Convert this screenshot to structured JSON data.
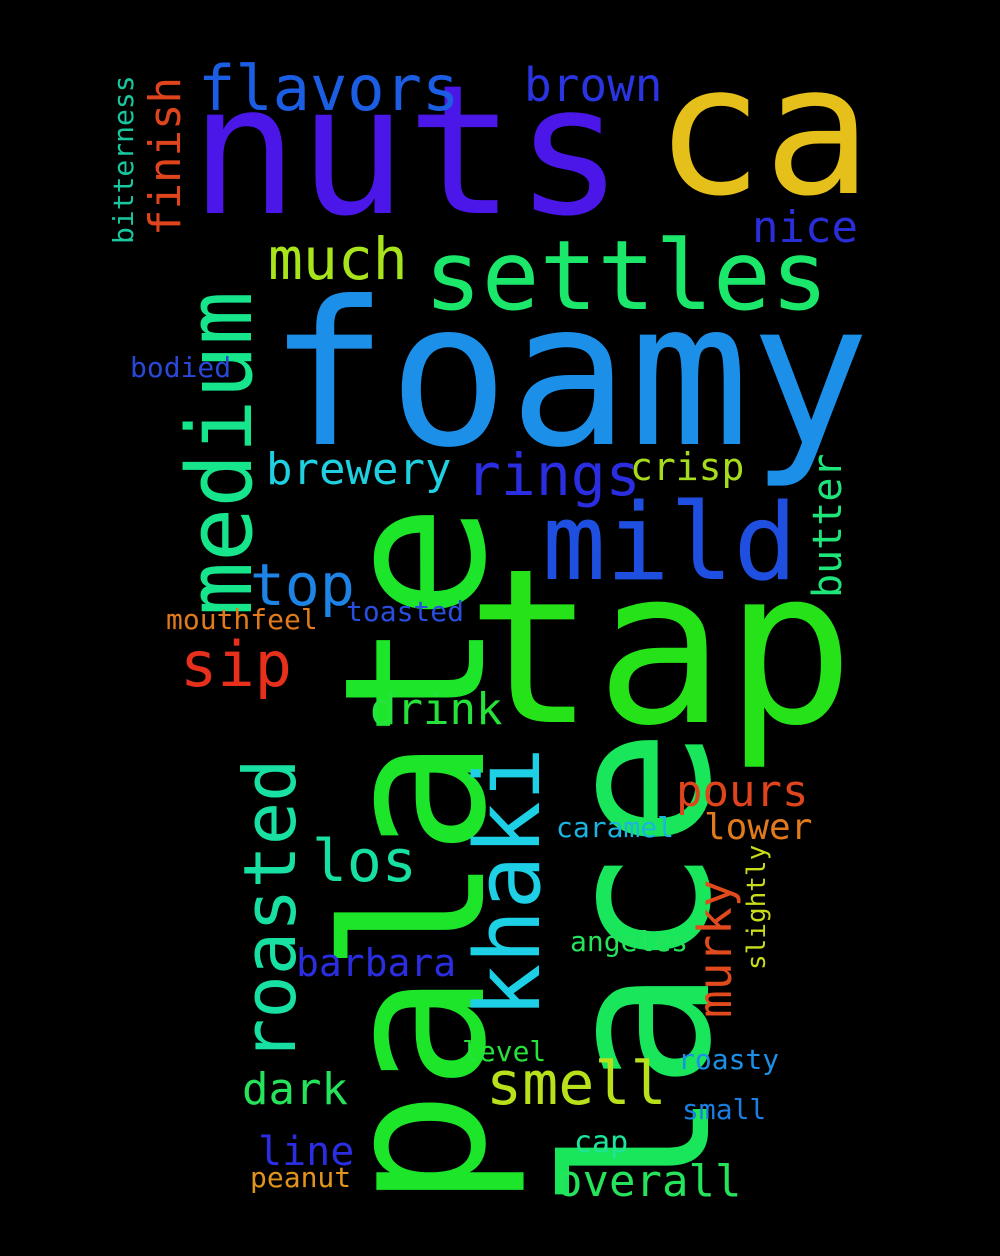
{
  "background": "#000000",
  "words": [
    {
      "text": "nuts",
      "color": "#4a17e8"
    },
    {
      "text": "ca",
      "color": "#e6c01a"
    },
    {
      "text": "foamy",
      "color": "#1c8fe8"
    },
    {
      "text": "tap",
      "color": "#25e318"
    },
    {
      "text": "palate",
      "color": "#1de62a"
    },
    {
      "text": "lace",
      "color": "#19e65a"
    },
    {
      "text": "settles",
      "color": "#1be86a"
    },
    {
      "text": "mild",
      "color": "#1e4fe0"
    },
    {
      "text": "medium",
      "color": "#17e58c"
    },
    {
      "text": "flavors",
      "color": "#1c5ee3"
    },
    {
      "text": "brown",
      "color": "#2a34e0"
    },
    {
      "text": "much",
      "color": "#a8e41b"
    },
    {
      "text": "nice",
      "color": "#2a2ed8"
    },
    {
      "text": "finish",
      "color": "#e0441c"
    },
    {
      "text": "bitterness",
      "color": "#18c79f"
    },
    {
      "text": "bodied",
      "color": "#2a48d8"
    },
    {
      "text": "brewery",
      "color": "#1fd1e0"
    },
    {
      "text": "rings",
      "color": "#2a2ee0"
    },
    {
      "text": "crisp",
      "color": "#a6dc1d"
    },
    {
      "text": "butter",
      "color": "#1ee47a"
    },
    {
      "text": "top",
      "color": "#1d84e6"
    },
    {
      "text": "mouthfeel",
      "color": "#e07a1d"
    },
    {
      "text": "toasted",
      "color": "#2a4fe0"
    },
    {
      "text": "sip",
      "color": "#e6301c"
    },
    {
      "text": "drink",
      "color": "#25e33a"
    },
    {
      "text": "roasted",
      "color": "#18e0a3"
    },
    {
      "text": "khaki",
      "color": "#1ed0e6"
    },
    {
      "text": "pours",
      "color": "#e0441c"
    },
    {
      "text": "lower",
      "color": "#e07a1d"
    },
    {
      "text": "murky",
      "color": "#e04a1c"
    },
    {
      "text": "caramel",
      "color": "#1cb4e0"
    },
    {
      "text": "los",
      "color": "#18e0a3"
    },
    {
      "text": "slightly",
      "color": "#c8dc1b"
    },
    {
      "text": "barbara",
      "color": "#2a2ee0"
    },
    {
      "text": "angeles",
      "color": "#25e35a"
    },
    {
      "text": "level",
      "color": "#25e33a"
    },
    {
      "text": "roasty",
      "color": "#1c8fe6"
    },
    {
      "text": "dark",
      "color": "#25e35a"
    },
    {
      "text": "smell",
      "color": "#b8e01b"
    },
    {
      "text": "small",
      "color": "#1c7ee0"
    },
    {
      "text": "line",
      "color": "#2a2ee0"
    },
    {
      "text": "cap",
      "color": "#1ee49a"
    },
    {
      "text": "peanut",
      "color": "#e0941c"
    },
    {
      "text": "overall",
      "color": "#25e35a"
    }
  ]
}
